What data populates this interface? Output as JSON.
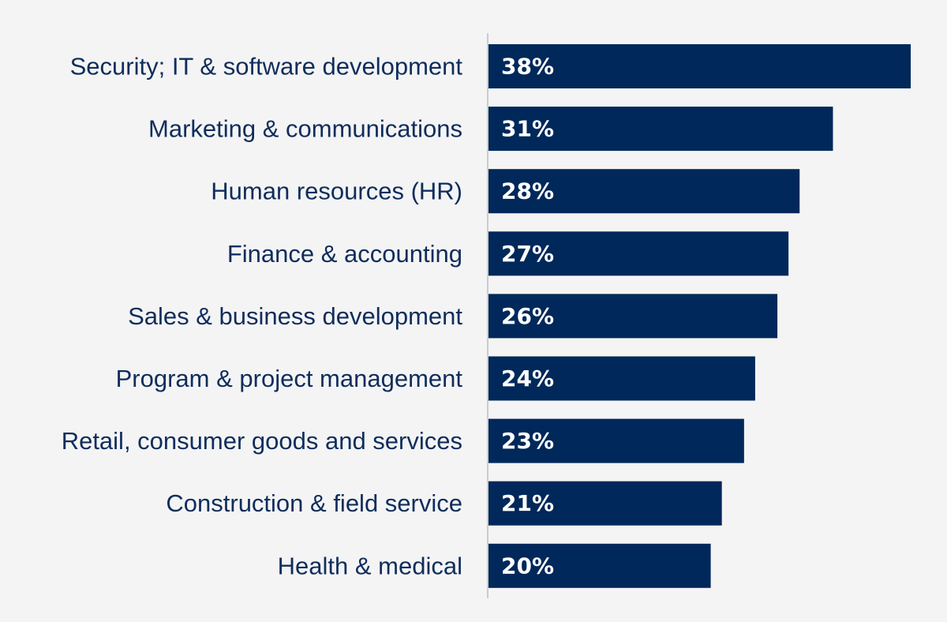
{
  "chart_data": {
    "type": "bar",
    "orientation": "horizontal",
    "categories": [
      "Security; IT & software development",
      "Marketing & communications",
      "Human resources (HR)",
      "Finance & accounting",
      "Sales & business development",
      "Program & project management",
      "Retail, consumer goods and services",
      "Construction & field service",
      "Health & medical"
    ],
    "values": [
      38,
      31,
      28,
      27,
      26,
      24,
      23,
      21,
      20
    ],
    "value_labels": [
      "38%",
      "31%",
      "28%",
      "27%",
      "26%",
      "24%",
      "23%",
      "21%",
      "20%"
    ],
    "unit": "%",
    "title": "",
    "xlabel": "",
    "ylabel": "",
    "grid": false,
    "legend": "none"
  },
  "colors": {
    "background": "#f4f4f4",
    "bar": "#00285a",
    "label": "#0f2d5c",
    "value_text": "#ffffff",
    "axis": "#cccccc"
  }
}
